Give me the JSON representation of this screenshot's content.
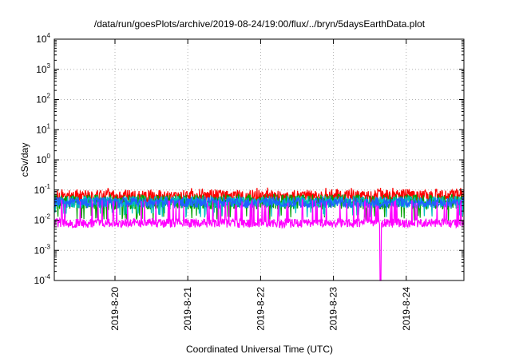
{
  "chart_data": {
    "type": "line",
    "title": "/data/run/goesPlots/archive/2019-08-24/19:00/flux/../bryn/5daysEarthData.plot",
    "xlabel": "Coordinated Universal Time (UTC)",
    "ylabel": "cSv/day",
    "y_scale": "log",
    "ylim": [
      0.0001,
      10000
    ],
    "xlim": [
      "2019-08-19T04:00",
      "2019-08-24T19:00"
    ],
    "y_ticks": [
      {
        "value": 0.0001,
        "base": "10",
        "exp": "-4"
      },
      {
        "value": 0.001,
        "base": "10",
        "exp": "-3"
      },
      {
        "value": 0.01,
        "base": "10",
        "exp": "-2"
      },
      {
        "value": 0.1,
        "base": "10",
        "exp": "-1"
      },
      {
        "value": 1,
        "base": "10",
        "exp": "0"
      },
      {
        "value": 10,
        "base": "10",
        "exp": "1"
      },
      {
        "value": 100,
        "base": "10",
        "exp": "2"
      },
      {
        "value": 1000,
        "base": "10",
        "exp": "3"
      },
      {
        "value": 10000,
        "base": "10",
        "exp": "4"
      }
    ],
    "x_ticks": [
      {
        "value": "2019-08-20",
        "label": "2019-8-20"
      },
      {
        "value": "2019-08-21",
        "label": "2019-8-21"
      },
      {
        "value": "2019-08-22",
        "label": "2019-8-22"
      },
      {
        "value": "2019-08-23",
        "label": "2019-8-23"
      },
      {
        "value": "2019-08-24",
        "label": "2019-8-24"
      }
    ],
    "grid": true,
    "legend": "none",
    "series": [
      {
        "color": "#ff0000",
        "baseline": 0.06,
        "spread": 0.45,
        "spike": 0.1
      },
      {
        "color": "#00a000",
        "baseline": 0.04,
        "spread": 0.5,
        "dip": 0.012
      },
      {
        "color": "#00c0c0",
        "baseline": 0.04,
        "spread": 0.4,
        "dip": 0.015
      },
      {
        "color": "#2060ff",
        "baseline": 0.038,
        "spread": 0.35
      },
      {
        "color": "#ff00ff",
        "baseline": 0.008,
        "spread": 0.3,
        "spike": 0.04,
        "dropout": {
          "time": "2019-08-23T15:30",
          "min": 0.0001
        }
      }
    ]
  }
}
